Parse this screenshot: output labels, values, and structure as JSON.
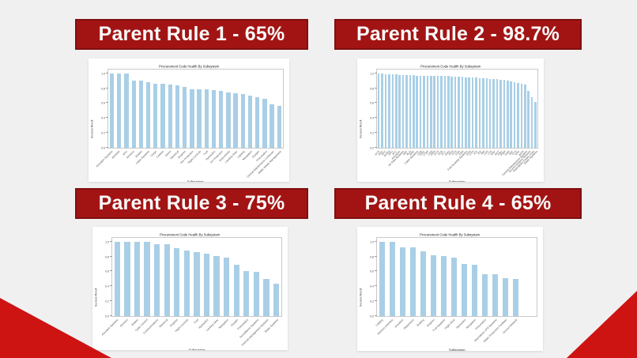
{
  "slide": {
    "background_color": "#f0f0f1",
    "banner_color": "#a21414",
    "banner_border_color": "#7f0f0f",
    "corner_triangle_color": "#ce1313",
    "bar_color": "#a9cfe6"
  },
  "panels": [
    {
      "header": "Parent Rule 1 - 65%"
    },
    {
      "header": "Parent Rule 2 - 98.7%"
    },
    {
      "header": "Parent Rule 3 - 75%"
    },
    {
      "header": "Parent Rule 4 - 65%"
    }
  ],
  "chart_data": [
    {
      "type": "bar",
      "title": "Procurement Code Health By Subsystem",
      "xlabel": "Subsystem",
      "ylabel": "Success Result",
      "ylim": [
        0,
        1.05
      ],
      "yticks": [
        "1.0",
        "0.8",
        "0.6",
        "0.4",
        "0.2",
        "0.0"
      ],
      "grid": false,
      "legend": false,
      "categories": [
        "Actuation Systems",
        "Airframe",
        "APU",
        "Avionics",
        "Brakes",
        "Cabin Systems",
        "Cargo",
        "Comms",
        "Doors",
        "Electrical",
        "Engines",
        "Fire Protection",
        "Flight Controls",
        "Fuel",
        "Hydraulics",
        "Ice Protection",
        "Instruments",
        "Landing Gear",
        "Lighting",
        "Navigation",
        "Oxygen",
        "Pneumatics",
        "Central Maintenance Computer",
        "Water Waste Management"
      ],
      "values": [
        1.0,
        1.0,
        1.0,
        0.9,
        0.9,
        0.88,
        0.86,
        0.86,
        0.85,
        0.84,
        0.82,
        0.79,
        0.78,
        0.78,
        0.77,
        0.76,
        0.74,
        0.73,
        0.72,
        0.7,
        0.68,
        0.66,
        0.58,
        0.56
      ]
    },
    {
      "type": "bar",
      "title": "Procurement Code Health By Subsystem",
      "xlabel": "Subsystem",
      "ylabel": "Success Result",
      "ylim": [
        0,
        1.05
      ],
      "yticks": [
        "1.0",
        "0.8",
        "0.6",
        "0.4",
        "0.2",
        "0.0"
      ],
      "grid": false,
      "legend": false,
      "categories": [
        "ACS",
        "ADC",
        "AFC",
        "AHRS",
        "APU",
        "ATC",
        "Actuation",
        "Air Data Systems",
        "BAT",
        "BLD",
        "BRK",
        "Cabin Systems",
        "CDS",
        "CMC",
        "COM",
        "CPS",
        "DRS",
        "ECS",
        "EFB",
        "ELC",
        "ENG",
        "EPS",
        "FCS",
        "FDR",
        "FMS",
        "Fuel Quantity Systems",
        "GPS",
        "HYD",
        "ICE",
        "IFE",
        "INS",
        "LGS",
        "LTS",
        "NAV",
        "OXY",
        "PNU",
        "PWR",
        "RAD",
        "SAT",
        "TCS",
        "VHF",
        "WXR",
        "Central Maintenance System",
        "Ground Support Network",
        "Standalone Power Units",
        "Water Systems"
      ],
      "values": [
        1.0,
        1.0,
        0.99,
        0.99,
        0.99,
        0.99,
        0.98,
        0.98,
        0.98,
        0.98,
        0.98,
        0.97,
        0.97,
        0.97,
        0.97,
        0.97,
        0.96,
        0.96,
        0.96,
        0.96,
        0.96,
        0.95,
        0.95,
        0.95,
        0.95,
        0.94,
        0.94,
        0.94,
        0.94,
        0.93,
        0.93,
        0.93,
        0.92,
        0.92,
        0.92,
        0.91,
        0.91,
        0.9,
        0.89,
        0.88,
        0.87,
        0.86,
        0.85,
        0.76,
        0.68,
        0.61
      ]
    },
    {
      "type": "bar",
      "title": "Procurement Code Health By Subsystem",
      "xlabel": "Subsystem",
      "ylabel": "Success Result",
      "ylim": [
        0,
        1.05
      ],
      "yticks": [
        "1.0",
        "0.8",
        "0.6",
        "0.4",
        "0.2",
        "0.0"
      ],
      "grid": false,
      "legend": false,
      "categories": [
        "Actuation Systems",
        "Avionics",
        "Brakes",
        "Cabin Control",
        "Communications",
        "Electrical",
        "Engines",
        "Flight Controls",
        "Fuel",
        "Hydraulics",
        "Landing Gear",
        "Navigation",
        "Oxygen",
        "Pneumatics",
        "Surveillance Systems",
        "Thermal Management Systems",
        "Water Systems"
      ],
      "values": [
        1.0,
        1.0,
        1.0,
        1.0,
        0.97,
        0.96,
        0.91,
        0.88,
        0.86,
        0.84,
        0.81,
        0.79,
        0.69,
        0.6,
        0.59,
        0.5,
        0.44
      ]
    },
    {
      "type": "bar",
      "title": "Procurement Code Health By Subsystem",
      "xlabel": "Subsystem",
      "ylabel": "Success Result",
      "ylim": [
        0,
        1.05
      ],
      "yticks": [
        "1.0",
        "0.8",
        "0.6",
        "0.4",
        "0.2",
        "0.0"
      ],
      "grid": false,
      "legend": false,
      "categories": [
        "Cabling",
        "Avionics Interface",
        "Actuation",
        "Dispensers",
        "Braking",
        "Engines",
        "Fuel Systems",
        "Flight Deck",
        "Hydraulics",
        "Navigation",
        "Pneumatics",
        "Standalone UPS Systems",
        "Water Production Facilities",
        "Ground Network"
      ],
      "values": [
        1.0,
        1.0,
        0.92,
        0.92,
        0.87,
        0.82,
        0.81,
        0.78,
        0.7,
        0.69,
        0.56,
        0.56,
        0.51,
        0.5
      ]
    }
  ]
}
